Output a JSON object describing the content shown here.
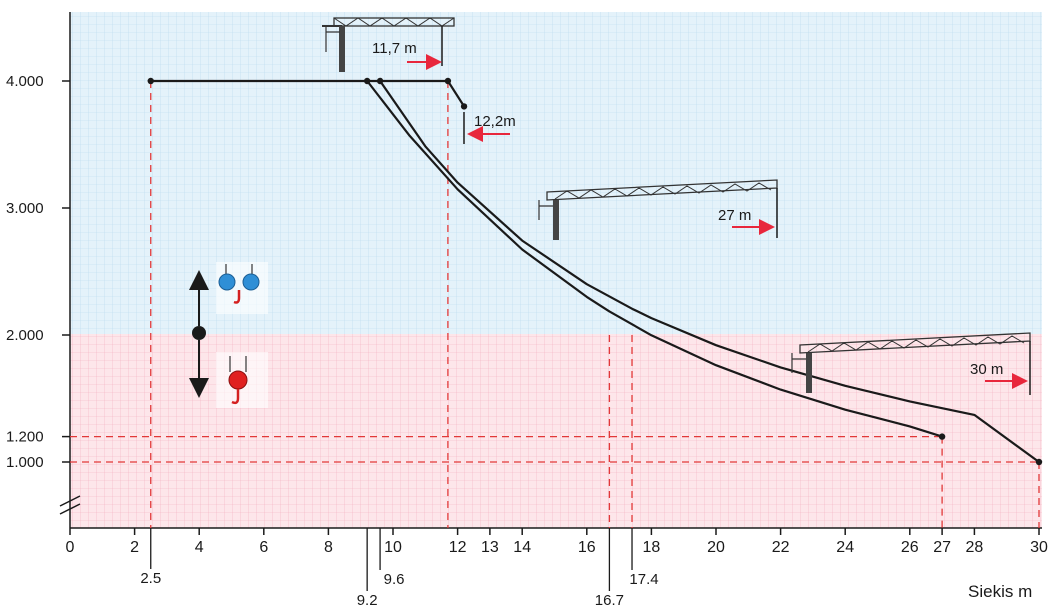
{
  "colors": {
    "blue_bg": "#dff0f9",
    "blue_grid": "#a9d1ea",
    "pink_bg": "#fbe3e8",
    "pink_grid": "#ef9fb0",
    "curve": "#1a1a1a",
    "dash": "#e23838",
    "arrow": "#e8273c",
    "hook_blue": "#2f8fd6",
    "hook_red": "#e02020"
  },
  "chart_data": {
    "type": "line",
    "xlabel": "Siekis m",
    "ylabel": "",
    "xlim": [
      0,
      30
    ],
    "ylim": [
      500,
      4500
    ],
    "x_ticks": [
      "0",
      "2",
      "4",
      "6",
      "8",
      "10",
      "12",
      "13",
      "14",
      "16",
      "18",
      "20",
      "22",
      "24",
      "26",
      "27",
      "28",
      "30"
    ],
    "x_ticks_low": [
      {
        "x": 2.5,
        "label": "2.5"
      },
      {
        "x": 9.2,
        "label": "9.2"
      },
      {
        "x": 9.6,
        "label": "9.6"
      },
      {
        "x": 16.7,
        "label": "16.7"
      },
      {
        "x": 17.4,
        "label": "17.4"
      }
    ],
    "y_ticks": [
      {
        "value": 1000,
        "label": "1.000"
      },
      {
        "value": 1200,
        "label": "1.200"
      },
      {
        "value": 2000,
        "label": "2.000"
      },
      {
        "value": 3000,
        "label": "3.000"
      },
      {
        "value": 4000,
        "label": "4.000"
      }
    ],
    "series": [
      {
        "name": "11,7 m",
        "points": [
          [
            2.5,
            4000
          ],
          [
            9.2,
            4000
          ],
          [
            9.6,
            4000
          ],
          [
            11.7,
            4000
          ],
          [
            12.2,
            3800
          ]
        ]
      },
      {
        "name": "27 m",
        "points": [
          [
            9.2,
            4000
          ],
          [
            10.5,
            3574
          ],
          [
            12,
            3147
          ],
          [
            14,
            2673
          ],
          [
            16,
            2300
          ],
          [
            16.7,
            2186
          ],
          [
            18,
            1998
          ],
          [
            20,
            1762
          ],
          [
            22,
            1570
          ],
          [
            24,
            1412
          ],
          [
            26,
            1280
          ],
          [
            27,
            1200
          ]
        ]
      },
      {
        "name": "30 m",
        "points": [
          [
            9.6,
            4000
          ],
          [
            11,
            3486
          ],
          [
            12,
            3200
          ],
          [
            14,
            2743
          ],
          [
            16,
            2400
          ],
          [
            17.4,
            2207
          ],
          [
            18,
            2133
          ],
          [
            20,
            1920
          ],
          [
            22,
            1745
          ],
          [
            24,
            1600
          ],
          [
            26,
            1477
          ],
          [
            28,
            1371
          ],
          [
            30,
            1000
          ]
        ]
      }
    ],
    "guides": [
      {
        "x": 2.5,
        "y": 4000
      },
      {
        "x": 11.7,
        "y": 4000
      },
      {
        "x": 16.7,
        "y": 2000
      },
      {
        "x": 17.4,
        "y": 2000
      },
      {
        "x": 27,
        "y": 1200
      },
      {
        "x": 30,
        "y": 1000
      }
    ],
    "h_guides": [
      {
        "y": 1200,
        "x_to": 27
      },
      {
        "y": 1000,
        "x_to": 30
      }
    ],
    "annotations": {
      "reach_11_7": "11,7 m",
      "reach_12_2": "12,2m",
      "reach_27": "27 m",
      "reach_30": "30 m"
    },
    "grid": true,
    "zones": [
      {
        "from": 500,
        "to": 2000,
        "color": "pink"
      },
      {
        "from": 2000,
        "to": 4500,
        "color": "blue"
      }
    ]
  }
}
